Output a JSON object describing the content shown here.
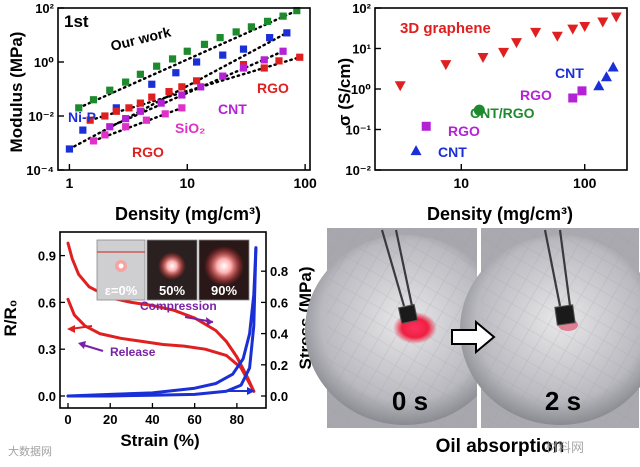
{
  "watermarks": {
    "left": "大数据网",
    "right": "材料网"
  },
  "icons": {
    "arrow": "hollow-right-arrow-icon"
  },
  "colors": {
    "green": "#1e8a2e",
    "blue": "#1a2fd6",
    "red": "#e02020",
    "purple": "#b422d6",
    "navy": "#1a1aa0"
  },
  "chart_data": [
    {
      "type": "scatter",
      "panel_label": "1st",
      "xlabel": "Density (mg/cm³)",
      "ylabel": "Modulus (MPa)",
      "xscale": "log",
      "yscale": "log",
      "xlim": [
        0.8,
        110
      ],
      "ylim": [
        0.0001,
        100
      ],
      "xticks": [
        "1",
        "10",
        "100"
      ],
      "yticks": [
        "10⁻⁴",
        "10⁻²",
        "10⁰",
        "10²"
      ],
      "series": [
        {
          "name": "Our work",
          "color": "#1e8a2e",
          "marker": "square",
          "x": [
            1.2,
            1.6,
            2.2,
            3,
            4,
            5.5,
            7.5,
            10,
            14,
            19,
            26,
            35,
            48,
            65,
            85
          ],
          "y": [
            0.02,
            0.04,
            0.09,
            0.18,
            0.35,
            0.7,
            1.3,
            2.5,
            4.5,
            8,
            13,
            20,
            32,
            50,
            80
          ]
        },
        {
          "name": "Ni-P",
          "color": "#1a2fd6",
          "marker": "square",
          "x": [
            1.0,
            1.3,
            2.5,
            5,
            8,
            12,
            20,
            30,
            50,
            70
          ],
          "y": [
            0.0006,
            0.003,
            0.02,
            0.15,
            0.4,
            1.0,
            1.8,
            3,
            8,
            12
          ]
        },
        {
          "name": "RGO",
          "color": "#e02020",
          "marker": "square",
          "x": [
            1.5,
            2,
            2.5,
            3.2,
            4,
            5,
            7,
            9,
            12,
            30,
            45,
            60,
            90
          ],
          "y": [
            0.007,
            0.01,
            0.015,
            0.02,
            0.03,
            0.05,
            0.08,
            0.12,
            0.2,
            0.8,
            0.6,
            1.1,
            1.5
          ]
        },
        {
          "name": "CNT",
          "color": "#b422d6",
          "marker": "square",
          "x": [
            2.2,
            3,
            4,
            6,
            9,
            13,
            20,
            30,
            45,
            65
          ],
          "y": [
            0.004,
            0.008,
            0.015,
            0.03,
            0.06,
            0.12,
            0.3,
            0.6,
            1.2,
            2.5
          ]
        },
        {
          "name": "SiO₂",
          "color": "#e030c8",
          "marker": "square",
          "x": [
            1.6,
            2,
            3,
            4.5,
            6.5,
            9
          ],
          "y": [
            0.0012,
            0.002,
            0.004,
            0.007,
            0.012,
            0.02
          ]
        }
      ],
      "labels": [
        "Our work",
        "Ni-P",
        "RGO",
        "RGO",
        "CNT",
        "SiO₂"
      ]
    },
    {
      "type": "scatter",
      "title": "3D graphene",
      "xlabel": "Density (mg/cm³)",
      "ylabel": "σ (S/cm)",
      "xscale": "log",
      "yscale": "log",
      "xlim": [
        2,
        220
      ],
      "ylim": [
        0.01,
        100
      ],
      "xticks": [
        "10",
        "100"
      ],
      "yticks": [
        "10⁻²",
        "10⁻¹",
        "10⁰",
        "10¹",
        "10²"
      ],
      "series": [
        {
          "name": "3D graphene",
          "color": "#e02020",
          "marker": "triangle-down",
          "x": [
            3.2,
            7.5,
            15,
            22,
            28,
            40,
            60,
            80,
            100,
            140,
            180
          ],
          "y": [
            1.2,
            4,
            6,
            8,
            14,
            25,
            20,
            30,
            35,
            45,
            60
          ]
        },
        {
          "name": "CNT",
          "color": "#1a2fd6",
          "marker": "triangle-up",
          "x": [
            4.3,
            130,
            150,
            170
          ],
          "y": [
            0.03,
            1.2,
            2,
            3.5
          ]
        },
        {
          "name": "RGO",
          "color": "#b422d6",
          "marker": "square",
          "x": [
            5.2,
            80,
            95
          ],
          "y": [
            0.12,
            0.6,
            0.9
          ]
        },
        {
          "name": "CNT/RGO",
          "color": "#1e8a2e",
          "marker": "circle",
          "x": [
            14
          ],
          "y": [
            0.3
          ]
        }
      ],
      "labels": [
        "3D graphene",
        "CNT",
        "RGO",
        "RGO",
        "CNT/RGO",
        "CNT"
      ]
    },
    {
      "type": "line",
      "xlabel": "Strain (%)",
      "ylabel_left": "R/R₀",
      "ylabel_right": "Stress (MPa)",
      "xlim": [
        0,
        90
      ],
      "ylim_left": [
        0,
        1.0
      ],
      "ylim_right": [
        0,
        1.0
      ],
      "xticks": [
        "0",
        "20",
        "40",
        "60",
        "80"
      ],
      "yticks_left": [
        "0.0",
        "0.3",
        "0.6",
        "0.9"
      ],
      "yticks_right": [
        "0.0",
        "0.2",
        "0.4",
        "0.6",
        "0.8"
      ],
      "annotations": [
        "Compression",
        "Release"
      ],
      "inset_labels": [
        "ε=0%",
        "50%",
        "90%"
      ],
      "series": [
        {
          "name": "R/R₀ compression",
          "axis": "left",
          "color": "#e02020",
          "x": [
            0,
            2,
            5,
            10,
            20,
            30,
            40,
            50,
            60,
            70,
            75,
            80,
            85,
            88
          ],
          "y": [
            0.98,
            0.88,
            0.78,
            0.7,
            0.63,
            0.6,
            0.58,
            0.55,
            0.5,
            0.42,
            0.35,
            0.25,
            0.12,
            0.03
          ]
        },
        {
          "name": "R/R₀ release",
          "axis": "left",
          "color": "#e02020",
          "x": [
            0,
            3,
            8,
            15,
            25,
            35,
            45,
            55,
            65,
            75,
            82,
            86,
            88
          ],
          "y": [
            0.62,
            0.52,
            0.45,
            0.4,
            0.37,
            0.35,
            0.33,
            0.32,
            0.3,
            0.26,
            0.18,
            0.08,
            0.03
          ]
        },
        {
          "name": "Stress compression",
          "axis": "right",
          "color": "#1a2fd6",
          "x": [
            0,
            20,
            40,
            60,
            70,
            78,
            83,
            86,
            88,
            89
          ],
          "y": [
            0.0,
            0.01,
            0.02,
            0.05,
            0.08,
            0.14,
            0.24,
            0.4,
            0.65,
            0.95
          ]
        },
        {
          "name": "Stress release",
          "axis": "right",
          "color": "#1a2fd6",
          "x": [
            0,
            20,
            40,
            60,
            75,
            82,
            86,
            88,
            89
          ],
          "y": [
            0.0,
            0.0,
            0.005,
            0.01,
            0.03,
            0.07,
            0.18,
            0.45,
            0.95
          ]
        }
      ]
    }
  ],
  "photos": {
    "time_left": "0 s",
    "time_right": "2 s",
    "caption": "Oil absorption"
  }
}
